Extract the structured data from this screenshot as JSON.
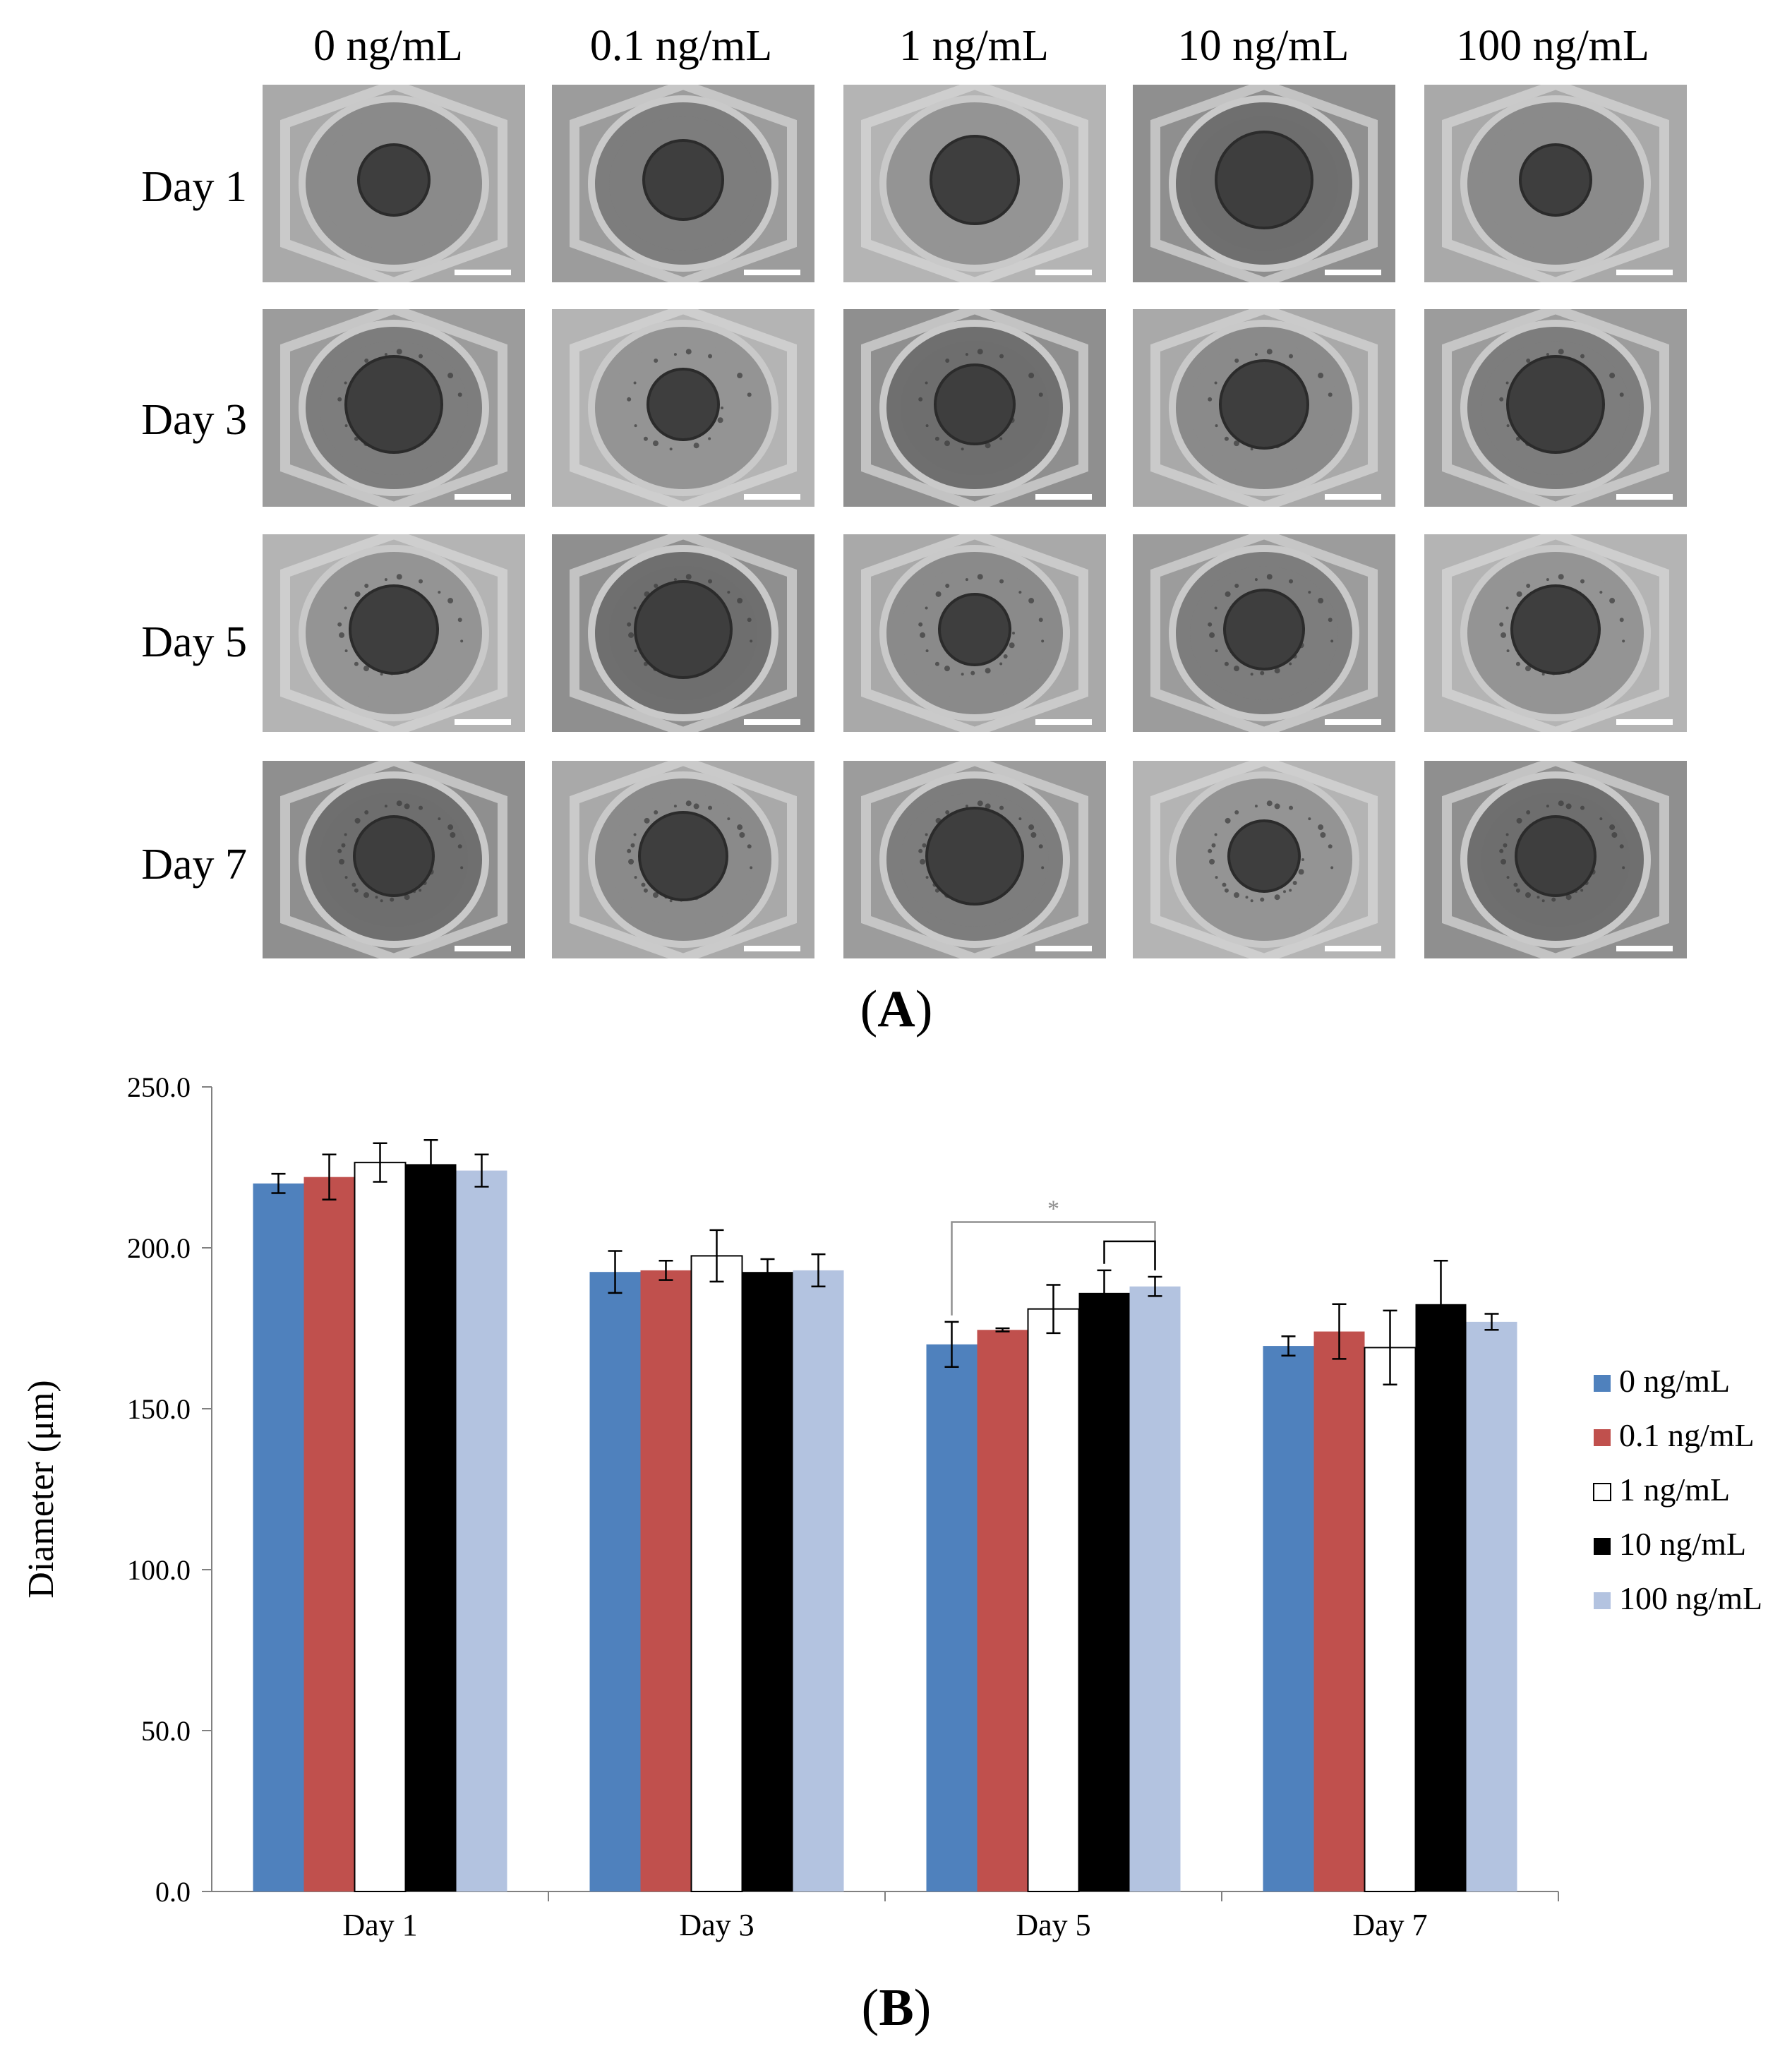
{
  "panel_a": {
    "label": "A",
    "columns": [
      "0 ng/mL",
      "0.1 ng/mL",
      "1 ng/mL",
      "10 ng/mL",
      "100 ng/mL"
    ],
    "rows": [
      "Day 1",
      "Day 3",
      "Day 5",
      "Day 7"
    ]
  },
  "panel_b": {
    "label": "B"
  },
  "chart_data": {
    "type": "bar",
    "ylabel": "Diameter (μm)",
    "xlabel": "",
    "ylim": [
      0,
      250
    ],
    "yticks": [
      "0.0",
      "50.0",
      "100.0",
      "150.0",
      "200.0",
      "250.0"
    ],
    "categories": [
      "Day 1",
      "Day 3",
      "Day 5",
      "Day 7"
    ],
    "legend_position": "right",
    "series": [
      {
        "name": "0 ng/mL",
        "color": "#4f81bd",
        "values": [
          220,
          192.5,
          170,
          169.5
        ],
        "errors": [
          3,
          6.5,
          7,
          3
        ]
      },
      {
        "name": "0.1 ng/mL",
        "color": "#c0504d",
        "values": [
          222,
          193,
          174.5,
          174
        ],
        "errors": [
          7,
          3,
          0.5,
          8.5
        ]
      },
      {
        "name": "1 ng/mL",
        "color": "#ffffff",
        "values": [
          226.5,
          197.5,
          181,
          169
        ],
        "errors": [
          6,
          8,
          7.5,
          11.5
        ]
      },
      {
        "name": "10 ng/mL",
        "color": "#000000",
        "values": [
          226,
          192.5,
          186,
          182.5
        ],
        "errors": [
          7.5,
          4,
          7,
          13.5
        ]
      },
      {
        "name": "100 ng/mL",
        "color": "#b3c3e0",
        "values": [
          224,
          193,
          188,
          177
        ],
        "errors": [
          5,
          5,
          3,
          2.5
        ]
      }
    ],
    "annotations": [
      {
        "text": "*",
        "category": "Day 5",
        "from_series": "0 ng/mL",
        "to_series": "100 ng/mL",
        "bracket_y": 208
      },
      {
        "text": "",
        "category": "Day 5",
        "from_series": "10 ng/mL",
        "to_series": "100 ng/mL",
        "bracket_y": 202
      }
    ]
  }
}
